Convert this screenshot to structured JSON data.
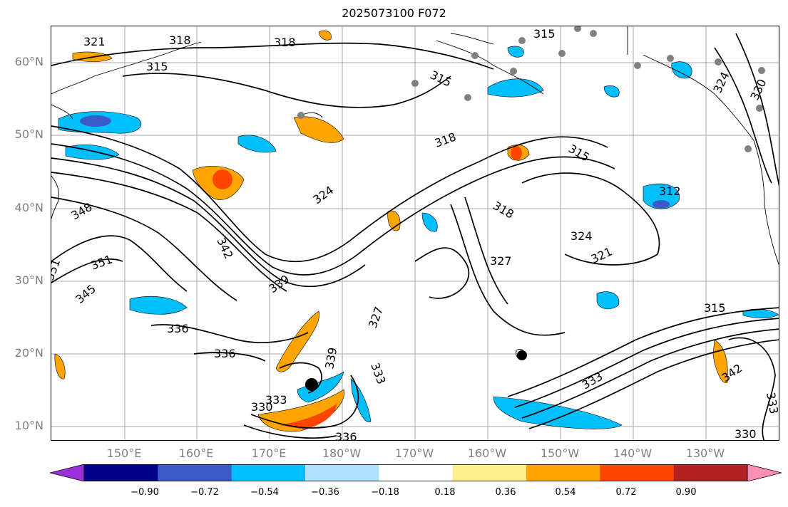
{
  "title": "2025073100 F072",
  "lat_labels": [
    "60°N",
    "50°N",
    "40°N",
    "30°N",
    "20°N",
    "10°N"
  ],
  "lon_labels": [
    "150°E",
    "160°E",
    "170°E",
    "180°W",
    "170°W",
    "160°W",
    "150°W",
    "140°W",
    "130°W"
  ],
  "colorbar": {
    "colors": [
      "#9b30d9",
      "#00008b",
      "#3a5bc7",
      "#00bfff",
      "#b0e0ff",
      "#ffffff",
      "#ffec8b",
      "#ffa500",
      "#ff4500",
      "#b22222",
      "#ff8fb5"
    ],
    "tick_labels": [
      "−0.90",
      "−0.72",
      "−0.54",
      "−0.36",
      "−0.18",
      "0.18",
      "0.36",
      "0.54",
      "0.72",
      "0.90"
    ]
  },
  "contour_labels": [
    "321",
    "318",
    "318",
    "315",
    "315",
    "315",
    "318",
    "315",
    "324",
    "330",
    "312",
    "318",
    "324",
    "327",
    "321",
    "348",
    "351",
    "351",
    "345",
    "342",
    "339",
    "336",
    "336",
    "327",
    "324",
    "339",
    "333",
    "333",
    "330",
    "333",
    "342",
    "333",
    "330",
    "315",
    "336"
  ],
  "colors": {
    "positive": "#ffa500",
    "positive_strong": "#ff4500",
    "negative": "#00bfff",
    "negative_weak": "#b0e0ff",
    "negative_strong": "#3a5bc7",
    "station_marker": "#808080"
  }
}
